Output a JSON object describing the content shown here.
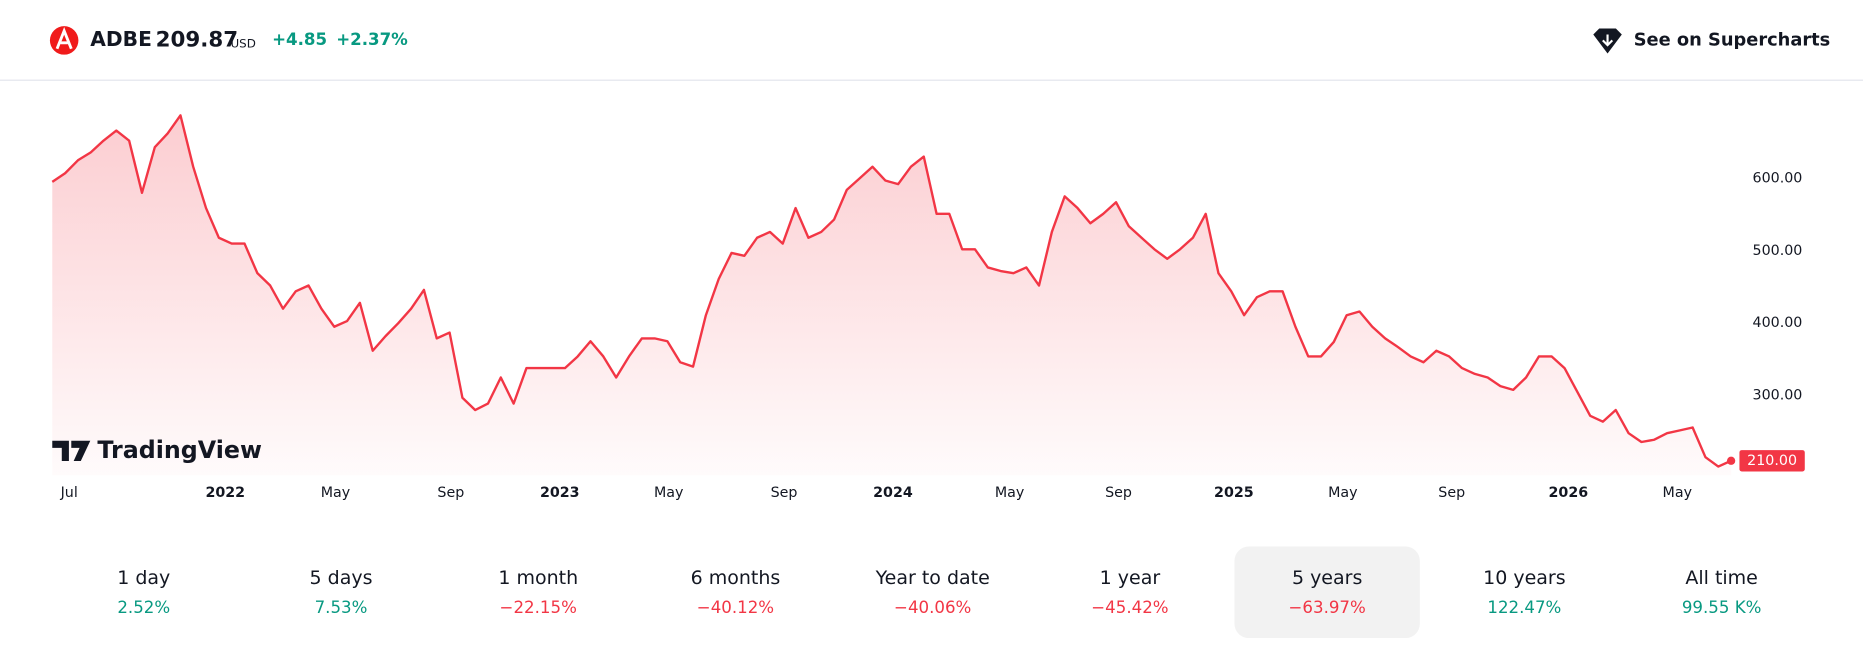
{
  "header": {
    "ticker": "ADBE",
    "price": "209.87",
    "currency": "USD",
    "change": "+4.85",
    "change_percent": "+2.37%",
    "button": "See on Supercharts"
  },
  "watermark": "TradingView",
  "chart_data": {
    "type": "area",
    "color": "#f23645",
    "values": [
      595,
      607,
      625,
      636,
      652,
      666,
      652,
      580,
      643,
      662,
      687,
      616,
      559,
      518,
      510,
      510,
      469,
      452,
      420,
      444,
      452,
      420,
      395,
      403,
      428,
      362,
      382,
      400,
      420,
      446,
      379,
      387,
      297,
      280,
      289,
      325,
      289,
      338,
      338,
      338,
      338,
      354,
      375,
      354,
      325,
      354,
      379,
      379,
      375,
      346,
      340,
      411,
      461,
      497,
      493,
      518,
      526,
      510,
      559,
      518,
      526,
      543,
      584,
      600,
      616,
      597,
      592,
      616,
      630,
      551,
      551,
      502,
      502,
      477,
      472,
      469,
      477,
      452,
      526,
      575,
      559,
      538,
      551,
      567,
      534,
      518,
      502,
      489,
      502,
      518,
      551,
      469,
      444,
      411,
      436,
      444,
      444,
      395,
      354,
      354,
      374,
      411,
      416,
      395,
      379,
      367,
      354,
      346,
      362,
      354,
      338,
      330,
      325,
      313,
      308,
      325,
      354,
      354,
      338,
      305,
      272,
      264,
      280,
      248,
      236,
      239,
      248,
      252,
      256,
      215,
      202,
      210
    ],
    "last_label": {
      "value": 210,
      "label": "210.00"
    },
    "xlim": [
      0,
      131
    ],
    "xticks": [
      {
        "value": 0.65,
        "label": "Jul"
      },
      {
        "value": 13.5,
        "label": "2022"
      },
      {
        "value": 22.1,
        "label": "May"
      },
      {
        "value": 31.1,
        "label": "Sep"
      },
      {
        "value": 39.6,
        "label": "2023"
      },
      {
        "value": 48.1,
        "label": "May"
      },
      {
        "value": 57.1,
        "label": "Sep"
      },
      {
        "value": 65.6,
        "label": "2024"
      },
      {
        "value": 74.7,
        "label": "May"
      },
      {
        "value": 83.2,
        "label": "Sep"
      },
      {
        "value": 92.2,
        "label": "2025"
      },
      {
        "value": 100.7,
        "label": "May"
      },
      {
        "value": 109.2,
        "label": "Sep"
      },
      {
        "value": 118.3,
        "label": "2026"
      },
      {
        "value": 126.8,
        "label": "May"
      }
    ],
    "ylim": [
      190,
      715
    ],
    "yticks": [
      {
        "value": 300,
        "label": "300.00"
      },
      {
        "value": 400,
        "label": "400.00"
      },
      {
        "value": 500,
        "label": "500.00"
      },
      {
        "value": 600,
        "label": "600.00"
      }
    ]
  },
  "periods": [
    {
      "label": "1 day",
      "value": "2.52%",
      "color": "#089981"
    },
    {
      "label": "5 days",
      "value": "7.53%",
      "color": "#089981"
    },
    {
      "label": "1 month",
      "value": "−22.15%",
      "color": "#f23645"
    },
    {
      "label": "6 months",
      "value": "−40.12%",
      "color": "#f23645"
    },
    {
      "label": "Year to date",
      "value": "−40.06%",
      "color": "#f23645"
    },
    {
      "label": "1 year",
      "value": "−45.42%",
      "color": "#f23645"
    },
    {
      "label": "5 years",
      "value": "−63.97%",
      "color": "#f23645",
      "selected": true
    },
    {
      "label": "10 years",
      "value": "122.47%",
      "color": "#089981"
    },
    {
      "label": "All time",
      "value": "99.55 K%",
      "color": "#089981"
    }
  ]
}
